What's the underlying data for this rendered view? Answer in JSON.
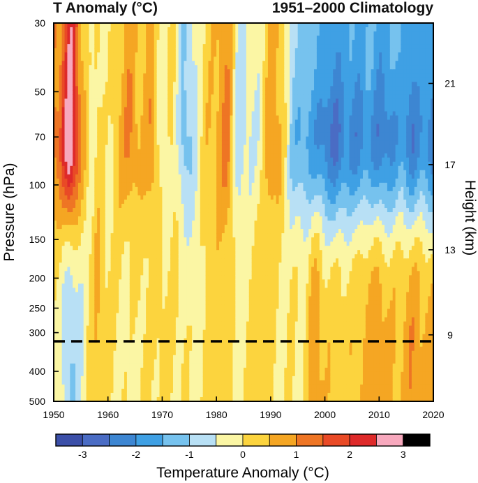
{
  "chart_data": {
    "type": "heatmap",
    "title_left": "T Anomaly (°C)",
    "title_right": "1951–2000 Climatology",
    "xlabel": "",
    "ylabel_left": "Pressure (hPa)",
    "ylabel_right": "Height (km)",
    "colorbar_label": "Temperature Anomaly (°C)",
    "x_range": [
      1950,
      2020
    ],
    "x_ticks": [
      1950,
      1960,
      1970,
      1980,
      1990,
      2000,
      2010,
      2020
    ],
    "y_range_hPa": [
      500,
      30
    ],
    "y_scale": "log",
    "pressure_ticks": [
      30,
      50,
      70,
      100,
      150,
      200,
      250,
      300,
      400,
      500
    ],
    "height_ticks": [
      {
        "km": 21,
        "hPa": 47
      },
      {
        "km": 17,
        "hPa": 86
      },
      {
        "km": 13,
        "hPa": 162
      },
      {
        "km": 9,
        "hPa": 305
      }
    ],
    "tropopause_reference_hPa": 320,
    "colorbar_levels": [
      -3.5,
      -3,
      -2.5,
      -2,
      -1.5,
      -1,
      -0.5,
      0,
      0.5,
      1,
      1.5,
      2,
      2.5,
      3,
      3.5
    ],
    "colorbar_tick_values": [
      -3,
      -2,
      -1,
      0,
      1,
      2,
      3
    ],
    "colorbar_tick_labels": [
      "-3",
      "-2",
      "-1",
      "0",
      "1",
      "2",
      "3"
    ],
    "colors": [
      "#3b4fa8",
      "#4a6cc4",
      "#3d86d2",
      "#3fa0e4",
      "#76c2ee",
      "#b8e0f5",
      "#fbf6a4",
      "#fcd43e",
      "#f5a623",
      "#ee7524",
      "#e94a26",
      "#de2a2a",
      "#f7a8bd"
    ],
    "time_anomaly_profiles": [
      {
        "year": 1951,
        "strat": 1.2,
        "trop": -0.3
      },
      {
        "year": 1953,
        "strat": 3.4,
        "trop": -1.6
      },
      {
        "year": 1955,
        "strat": 1.0,
        "trop": -0.8
      },
      {
        "year": 1957,
        "strat": -0.4,
        "trop": 0.3
      },
      {
        "year": 1958,
        "strat": 0.2,
        "trop": 0.9
      },
      {
        "year": 1960,
        "strat": -0.2,
        "trop": 0.1
      },
      {
        "year": 1962,
        "strat": 0.5,
        "trop": 0.0
      },
      {
        "year": 1964,
        "strat": 1.1,
        "trop": -0.3
      },
      {
        "year": 1966,
        "strat": 0.4,
        "trop": 0.1
      },
      {
        "year": 1968,
        "strat": 1.0,
        "trop": 0.0
      },
      {
        "year": 1970,
        "strat": -0.5,
        "trop": 0.3
      },
      {
        "year": 1972,
        "strat": 0.2,
        "trop": 0.0
      },
      {
        "year": 1974,
        "strat": -1.3,
        "trop": 0.1
      },
      {
        "year": 1976,
        "strat": -0.7,
        "trop": -0.4
      },
      {
        "year": 1978,
        "strat": 0.3,
        "trop": 0.2
      },
      {
        "year": 1980,
        "strat": 0.6,
        "trop": 0.3
      },
      {
        "year": 1982,
        "strat": 1.3,
        "trop": 0.3
      },
      {
        "year": 1984,
        "strat": -0.9,
        "trop": -0.3
      },
      {
        "year": 1986,
        "strat": -0.5,
        "trop": 0.0
      },
      {
        "year": 1988,
        "strat": -0.4,
        "trop": 0.4
      },
      {
        "year": 1990,
        "strat": 1.0,
        "trop": 0.3
      },
      {
        "year": 1992,
        "strat": 0.5,
        "trop": -0.3
      },
      {
        "year": 1994,
        "strat": -1.2,
        "trop": 0.1
      },
      {
        "year": 1996,
        "strat": -1.5,
        "trop": -0.1
      },
      {
        "year": 1998,
        "strat": -1.8,
        "trop": 1.3
      },
      {
        "year": 2000,
        "strat": -2.2,
        "trop": 0.5
      },
      {
        "year": 2002,
        "strat": -2.6,
        "trop": 0.5
      },
      {
        "year": 2004,
        "strat": -2.0,
        "trop": 0.4
      },
      {
        "year": 2006,
        "strat": -2.3,
        "trop": 0.6
      },
      {
        "year": 2008,
        "strat": -1.8,
        "trop": 1.0
      },
      {
        "year": 2010,
        "strat": -2.4,
        "trop": 1.2
      },
      {
        "year": 2012,
        "strat": -2.1,
        "trop": 0.7
      },
      {
        "year": 2014,
        "strat": -1.7,
        "trop": 0.7
      },
      {
        "year": 2016,
        "strat": -2.5,
        "trop": 1.3
      },
      {
        "year": 2018,
        "strat": -1.9,
        "trop": 0.9
      },
      {
        "year": 2020,
        "strat": -2.3,
        "trop": 0.9
      }
    ]
  }
}
